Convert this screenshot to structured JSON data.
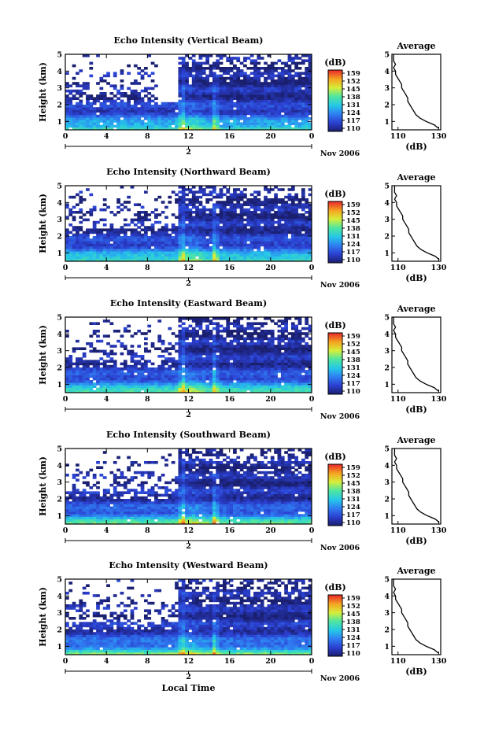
{
  "chart_data": {
    "type": "heatmap",
    "xlabel": "Local Time",
    "date_label": "Nov 2006",
    "day_label": "2",
    "colorbar": {
      "unit": "(dB)",
      "ticks": [
        "159",
        "152",
        "145",
        "138",
        "131",
        "124",
        "117",
        "110"
      ]
    },
    "average_panel": {
      "title": "Average",
      "xlabel": "(dB)",
      "xticks": [
        "110",
        "130"
      ],
      "xlim": [
        107,
        131
      ],
      "ylim": [
        0.5,
        5
      ],
      "yticks": [
        "5",
        "4",
        "3",
        "2",
        "1"
      ],
      "height_km": [
        0.6,
        0.8,
        1.0,
        1.2,
        1.4,
        1.6,
        1.8,
        2.0,
        2.2,
        2.4,
        2.6,
        2.8,
        3.0,
        3.2,
        3.4,
        3.6,
        3.8,
        4.0,
        4.2,
        4.4,
        4.6,
        4.8,
        5.0
      ],
      "avg_db": [
        130,
        128,
        124,
        121,
        119,
        118,
        117,
        116,
        115,
        115,
        114,
        113,
        112,
        112,
        111,
        110,
        109,
        109,
        108,
        109,
        108,
        108,
        108
      ]
    },
    "panels": [
      {
        "title": "Echo Intensity (Vertical Beam)",
        "ylabel": "Height (km)",
        "yticks": [
          "5",
          "4",
          "3",
          "2",
          "1"
        ],
        "xticks": [
          "0",
          "4",
          "8",
          "12",
          "16",
          "20",
          "0"
        ],
        "xlim": [
          0,
          24
        ],
        "ylim": [
          0.5,
          5
        ]
      },
      {
        "title": "Echo Intensity (Northward Beam)",
        "ylabel": "Height (km)",
        "yticks": [
          "5",
          "4",
          "3",
          "2",
          "1"
        ],
        "xticks": [
          "0",
          "4",
          "8",
          "12",
          "16",
          "20",
          "0"
        ],
        "xlim": [
          0,
          24
        ],
        "ylim": [
          0.5,
          5
        ]
      },
      {
        "title": "Echo Intensity (Eastward Beam)",
        "ylabel": "Height (km)",
        "yticks": [
          "5",
          "4",
          "3",
          "2",
          "1"
        ],
        "xticks": [
          "0",
          "4",
          "8",
          "12",
          "16",
          "20",
          "0"
        ],
        "xlim": [
          0,
          24
        ],
        "ylim": [
          0.5,
          5
        ]
      },
      {
        "title": "Echo Intensity (Southward Beam)",
        "ylabel": "Height (km)",
        "yticks": [
          "5",
          "4",
          "3",
          "2",
          "1"
        ],
        "xticks": [
          "0",
          "4",
          "8",
          "12",
          "16",
          "20",
          "0"
        ],
        "xlim": [
          0,
          24
        ],
        "ylim": [
          0.5,
          5
        ]
      },
      {
        "title": "Echo Intensity (Westward Beam)",
        "ylabel": "Height (km)",
        "yticks": [
          "5",
          "4",
          "3",
          "2",
          "1"
        ],
        "xticks": [
          "0",
          "4",
          "8",
          "12",
          "16",
          "20",
          "0"
        ],
        "xlim": [
          0,
          24
        ],
        "ylim": [
          0.5,
          5
        ]
      }
    ]
  }
}
